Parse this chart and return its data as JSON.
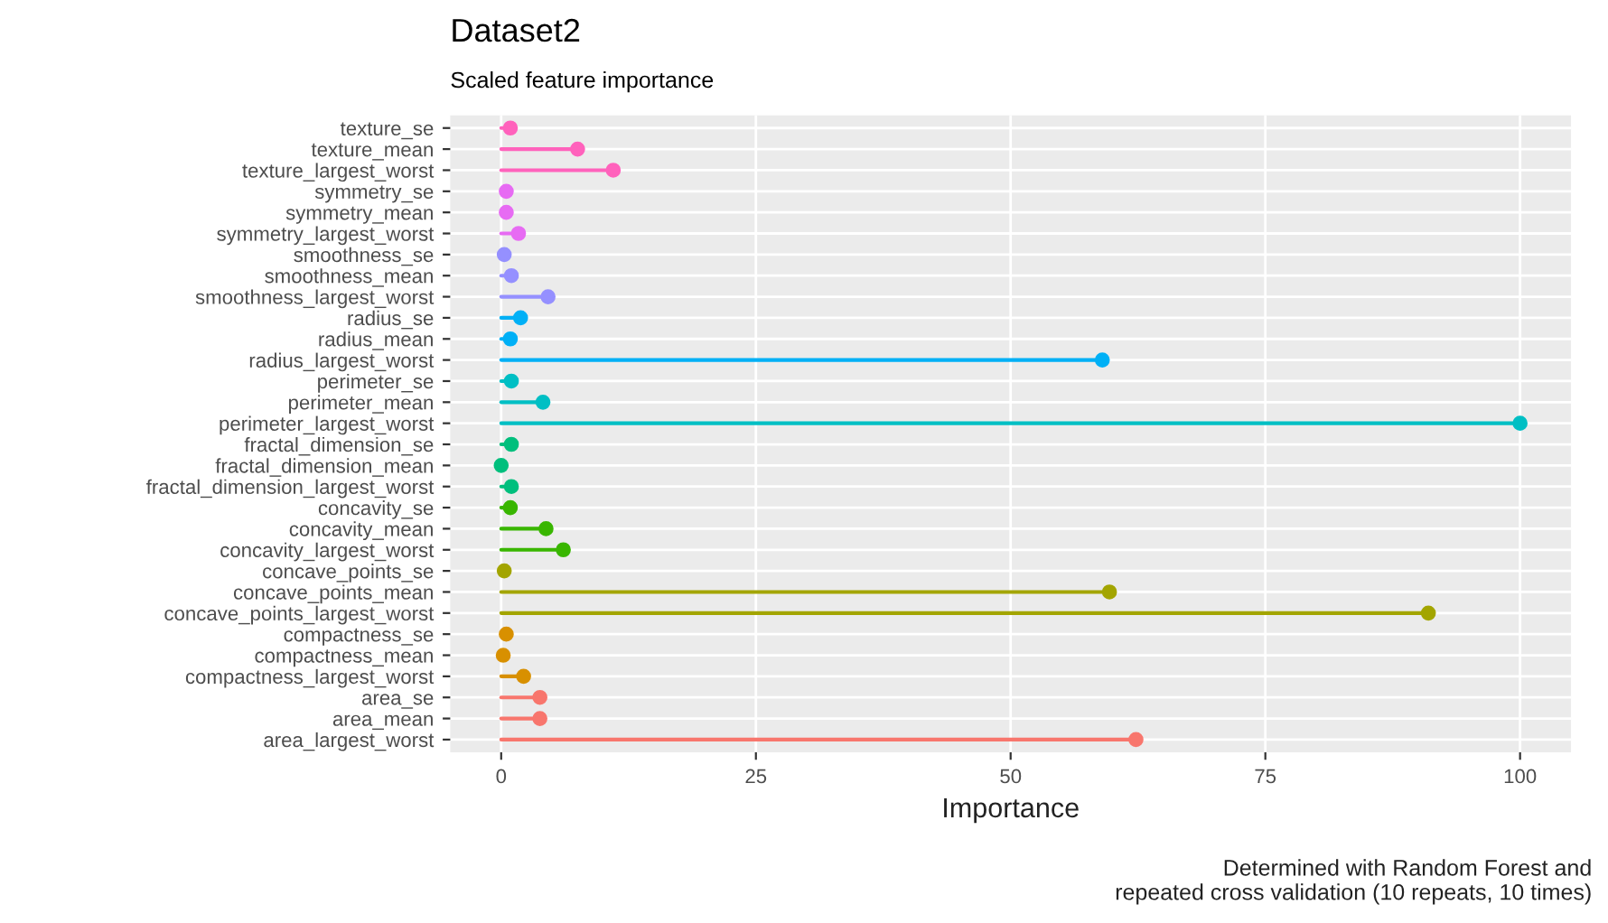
{
  "chart_data": {
    "type": "lollipop",
    "orientation": "horizontal",
    "title": "Dataset2",
    "subtitle": "Scaled feature importance",
    "xlabel": "Importance",
    "categories": [
      "texture_se",
      "texture_mean",
      "texture_largest_worst",
      "symmetry_se",
      "symmetry_mean",
      "symmetry_largest_worst",
      "smoothness_se",
      "smoothness_mean",
      "smoothness_largest_worst",
      "radius_se",
      "radius_mean",
      "radius_largest_worst",
      "perimeter_se",
      "perimeter_mean",
      "perimeter_largest_worst",
      "fractal_dimension_se",
      "fractal_dimension_mean",
      "fractal_dimension_largest_worst",
      "concavity_se",
      "concavity_mean",
      "concavity_largest_worst",
      "concave_points_se",
      "concave_points_mean",
      "concave_points_largest_worst",
      "compactness_se",
      "compactness_mean",
      "compactness_largest_worst",
      "area_se",
      "area_mean",
      "area_largest_worst"
    ],
    "values": [
      0.9,
      7.5,
      11,
      0.5,
      0.5,
      1.7,
      0.3,
      1.0,
      4.6,
      1.9,
      0.9,
      59,
      1.0,
      4.1,
      100,
      1.0,
      0,
      1.0,
      0.9,
      4.4,
      6.1,
      0.3,
      59.7,
      91,
      0.5,
      0.2,
      2.2,
      3.8,
      3.8,
      62.3
    ],
    "colors": [
      "#FF62BC",
      "#FF62BC",
      "#FF62BC",
      "#E76BF3",
      "#E76BF3",
      "#E76BF3",
      "#9590FF",
      "#9590FF",
      "#9590FF",
      "#00B0F6",
      "#00B0F6",
      "#00B0F6",
      "#00BFC4",
      "#00BFC4",
      "#00BFC4",
      "#00BF7D",
      "#00BF7D",
      "#00BF7D",
      "#39B600",
      "#39B600",
      "#39B600",
      "#A3A500",
      "#A3A500",
      "#A3A500",
      "#D89000",
      "#D89000",
      "#D89000",
      "#F8766D",
      "#F8766D",
      "#F8766D"
    ],
    "xlim": [
      -5,
      105
    ],
    "xticks": [
      0,
      25,
      50,
      75,
      100
    ],
    "grid": true,
    "marker": "circle",
    "annotations": [
      "Determined with Random Forest and\nrepeated cross validation (10 repeats, 10 times)"
    ]
  }
}
